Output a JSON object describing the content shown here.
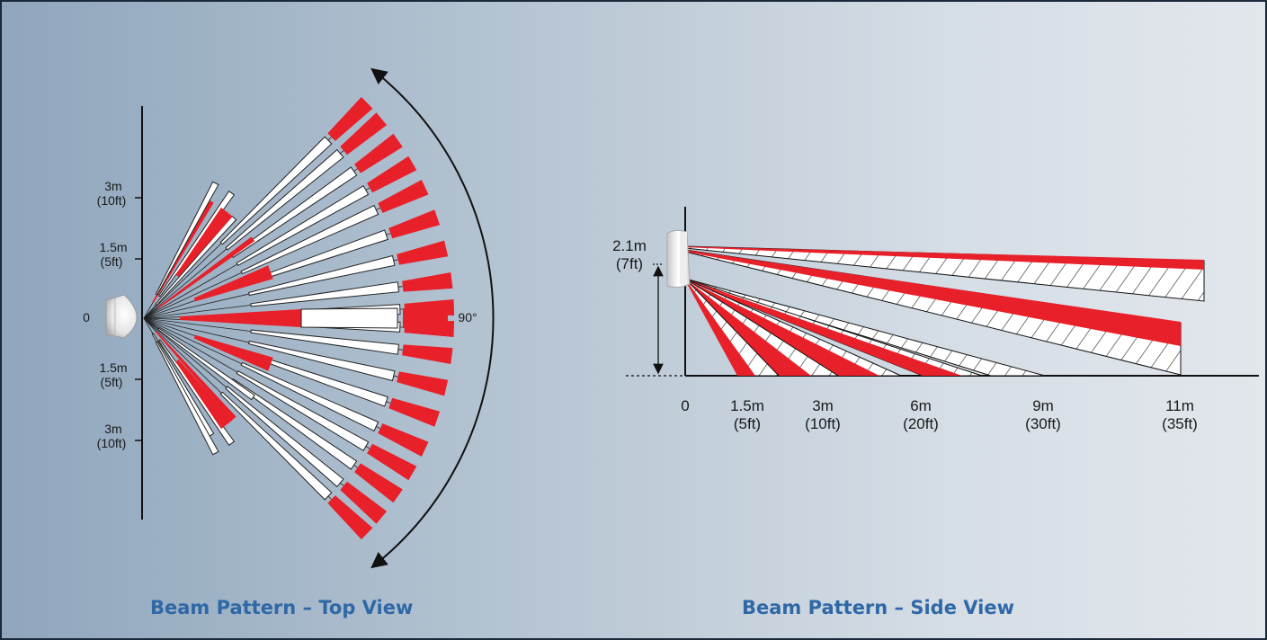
{
  "top_view": {
    "caption": "Beam Pattern – Top View",
    "origin_label": "0",
    "angle_label": "90°",
    "scale_labels": [
      {
        "m": "3m",
        "ft": "(10ft)"
      },
      {
        "m": "1.5m",
        "ft": "(5ft)"
      },
      {
        "m": "1.5m",
        "ft": "(5ft)"
      },
      {
        "m": "3m",
        "ft": "(10ft)"
      }
    ]
  },
  "side_view": {
    "caption": "Beam Pattern – Side View",
    "height_label": {
      "m": "2.1m",
      "ft": "(7ft)"
    },
    "distance_labels": [
      {
        "m": "0",
        "ft": ""
      },
      {
        "m": "1.5m",
        "ft": "(5ft)"
      },
      {
        "m": "3m",
        "ft": "(10ft)"
      },
      {
        "m": "6m",
        "ft": "(20ft)"
      },
      {
        "m": "9m",
        "ft": "(30ft)"
      },
      {
        "m": "11m",
        "ft": "(35ft)"
      }
    ]
  },
  "colors": {
    "beam_red": "#e8202a",
    "beam_white": "#ffffff",
    "caption_blue": "#2f68a6",
    "frame_border": "#1b2a3a"
  }
}
